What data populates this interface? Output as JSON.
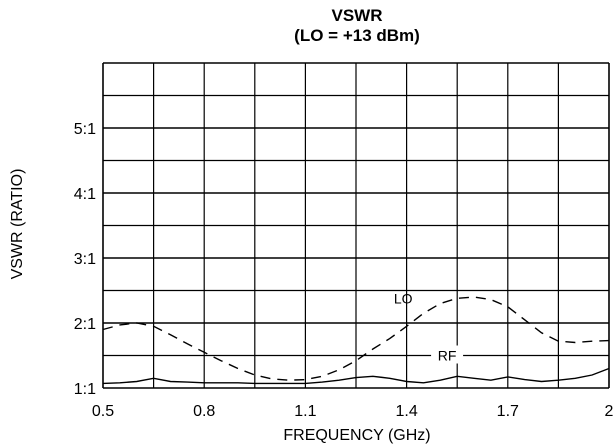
{
  "chart_data": {
    "type": "line",
    "title": "VSWR",
    "subtitle": "(LO = +13 dBm)",
    "xlabel": "FREQUENCY (GHz)",
    "ylabel": "VSWR (RATIO)",
    "xlim": [
      0.5,
      2.0
    ],
    "ylim": [
      1.0,
      6.0
    ],
    "x_ticks": [
      0.5,
      0.8,
      1.1,
      1.4,
      1.7,
      2.0
    ],
    "x_tick_labels": [
      "0.5",
      "0.8",
      "1.1",
      "1.4",
      "1.7",
      "2"
    ],
    "y_ticks": [
      1,
      2,
      3,
      4,
      5
    ],
    "y_tick_labels": [
      "1:1",
      "2:1",
      "3:1",
      "4:1",
      "5:1"
    ],
    "grid": true,
    "series": [
      {
        "name": "LO",
        "style": "dashed",
        "x": [
          0.5,
          0.55,
          0.6,
          0.65,
          0.7,
          0.75,
          0.8,
          0.85,
          0.9,
          0.95,
          1.0,
          1.05,
          1.1,
          1.15,
          1.2,
          1.25,
          1.3,
          1.35,
          1.4,
          1.45,
          1.5,
          1.55,
          1.6,
          1.65,
          1.7,
          1.75,
          1.8,
          1.85,
          1.9,
          1.95,
          2.0
        ],
        "y": [
          1.9,
          1.97,
          2.0,
          1.95,
          1.82,
          1.68,
          1.55,
          1.42,
          1.3,
          1.2,
          1.14,
          1.12,
          1.13,
          1.18,
          1.28,
          1.42,
          1.6,
          1.76,
          1.95,
          2.15,
          2.3,
          2.38,
          2.4,
          2.36,
          2.25,
          2.05,
          1.85,
          1.72,
          1.7,
          1.72,
          1.73
        ]
      },
      {
        "name": "RF",
        "style": "solid",
        "x": [
          0.5,
          0.55,
          0.6,
          0.65,
          0.7,
          0.75,
          0.8,
          0.85,
          0.9,
          0.95,
          1.0,
          1.05,
          1.1,
          1.15,
          1.2,
          1.25,
          1.3,
          1.35,
          1.4,
          1.45,
          1.5,
          1.55,
          1.6,
          1.65,
          1.7,
          1.75,
          1.8,
          1.85,
          1.9,
          1.95,
          2.0
        ],
        "y": [
          1.07,
          1.08,
          1.1,
          1.15,
          1.1,
          1.09,
          1.08,
          1.08,
          1.08,
          1.07,
          1.07,
          1.07,
          1.07,
          1.09,
          1.12,
          1.16,
          1.18,
          1.15,
          1.1,
          1.08,
          1.12,
          1.18,
          1.15,
          1.12,
          1.17,
          1.13,
          1.1,
          1.12,
          1.15,
          1.2,
          1.3
        ]
      }
    ]
  }
}
